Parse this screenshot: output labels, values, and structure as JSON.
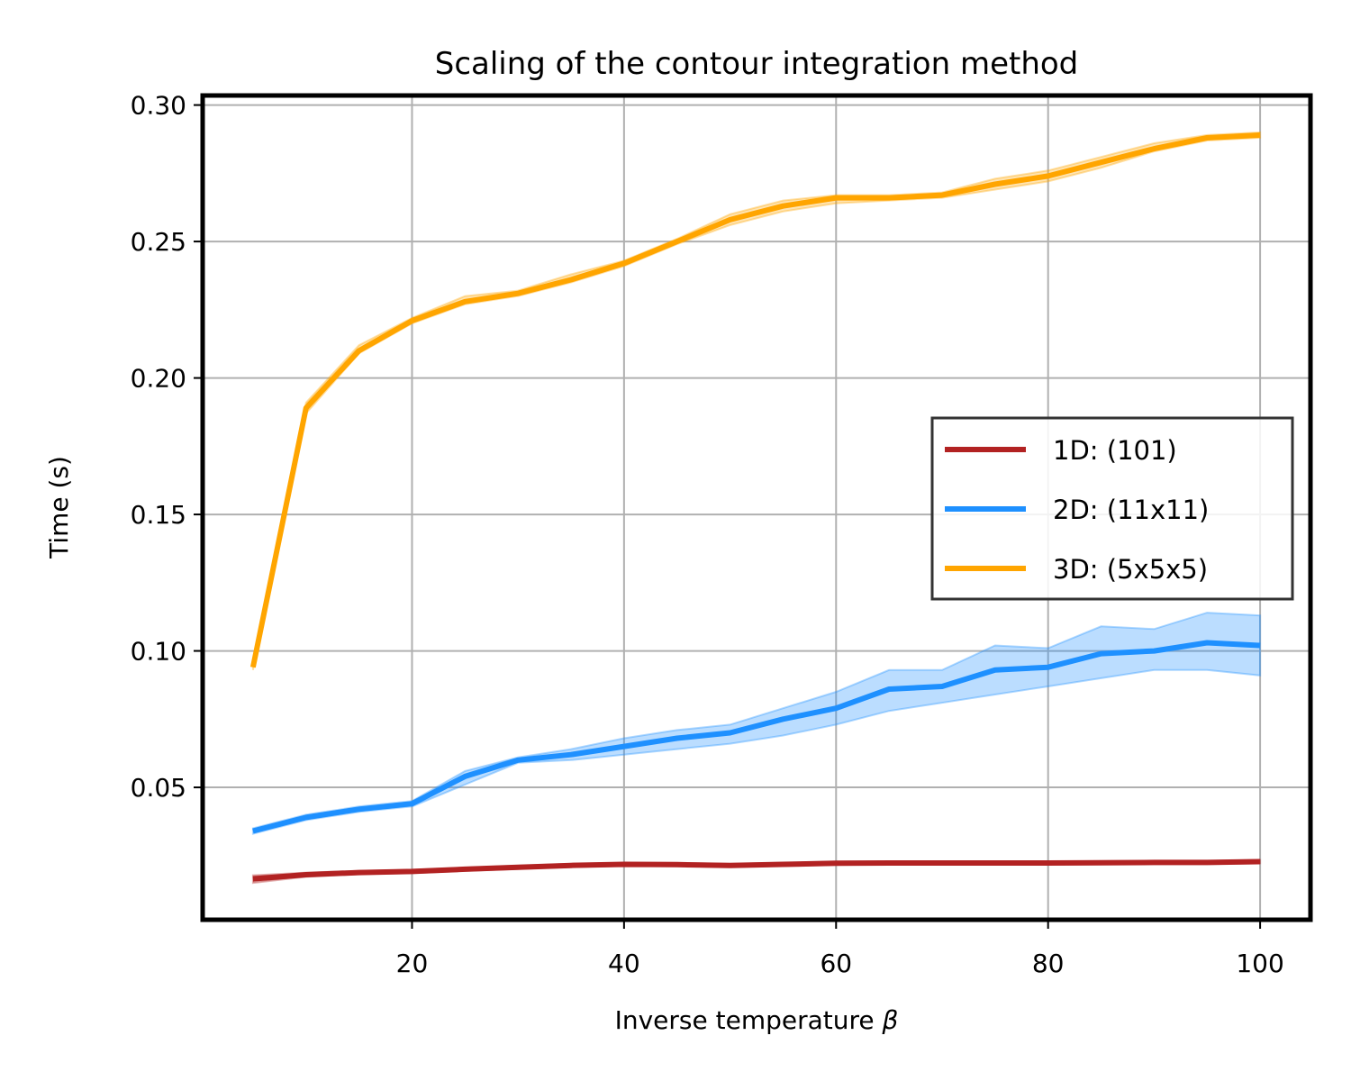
{
  "chart_data": {
    "type": "line",
    "title": "Scaling of the contour integration method",
    "xlabel": "Inverse temperature",
    "xlabel_symbol": "β",
    "ylabel": "Time (s)",
    "xlim": [
      0.25,
      104.75
    ],
    "ylim": [
      0.0015,
      0.3035
    ],
    "xticks": [
      20,
      40,
      60,
      80,
      100
    ],
    "xtick_labels": [
      "20",
      "40",
      "60",
      "80",
      "100"
    ],
    "yticks": [
      0.05,
      0.1,
      0.15,
      0.2,
      0.25,
      0.3
    ],
    "ytick_labels": [
      "0.05",
      "0.10",
      "0.15",
      "0.20",
      "0.25",
      "0.30"
    ],
    "grid": true,
    "legend_position": "center-right",
    "x": [
      5,
      10,
      15,
      20,
      25,
      30,
      35,
      40,
      45,
      50,
      55,
      60,
      65,
      70,
      75,
      80,
      85,
      90,
      95,
      100
    ],
    "series": [
      {
        "name": "1D: (101)",
        "color": "#b22222",
        "values": [
          0.0165,
          0.018,
          0.0188,
          0.0192,
          0.02,
          0.0207,
          0.0214,
          0.0218,
          0.0217,
          0.0214,
          0.0218,
          0.0222,
          0.0223,
          0.0223,
          0.0223,
          0.0223,
          0.0224,
          0.0225,
          0.0225,
          0.0228
        ],
        "lower": [
          0.015,
          0.0172,
          0.0182,
          0.0186,
          0.0194,
          0.0201,
          0.0208,
          0.0212,
          0.0211,
          0.0208,
          0.0212,
          0.0216,
          0.0217,
          0.0217,
          0.0217,
          0.0217,
          0.0218,
          0.0219,
          0.0219,
          0.0222
        ],
        "upper": [
          0.0178,
          0.0188,
          0.0194,
          0.0198,
          0.0206,
          0.0213,
          0.022,
          0.0224,
          0.0223,
          0.022,
          0.0224,
          0.0228,
          0.0229,
          0.0229,
          0.0229,
          0.0229,
          0.023,
          0.0231,
          0.0231,
          0.0234
        ]
      },
      {
        "name": "2D: (11x11)",
        "color": "#1e90ff",
        "values": [
          0.034,
          0.039,
          0.042,
          0.044,
          0.054,
          0.06,
          0.062,
          0.065,
          0.068,
          0.07,
          0.075,
          0.079,
          0.086,
          0.087,
          0.093,
          0.094,
          0.099,
          0.1,
          0.103,
          0.102
        ],
        "lower": [
          0.033,
          0.038,
          0.041,
          0.043,
          0.051,
          0.059,
          0.06,
          0.062,
          0.064,
          0.066,
          0.069,
          0.073,
          0.078,
          0.081,
          0.084,
          0.087,
          0.09,
          0.093,
          0.093,
          0.091
        ],
        "upper": [
          0.035,
          0.04,
          0.043,
          0.045,
          0.056,
          0.061,
          0.064,
          0.068,
          0.071,
          0.073,
          0.079,
          0.085,
          0.093,
          0.093,
          0.102,
          0.101,
          0.109,
          0.108,
          0.114,
          0.113
        ]
      },
      {
        "name": "3D: (5x5x5)",
        "color": "#ffa500",
        "values": [
          0.094,
          0.189,
          0.21,
          0.221,
          0.228,
          0.231,
          0.236,
          0.242,
          0.25,
          0.258,
          0.263,
          0.266,
          0.266,
          0.267,
          0.271,
          0.274,
          0.279,
          0.284,
          0.288,
          0.289
        ],
        "lower": [
          0.093,
          0.187,
          0.209,
          0.22,
          0.227,
          0.23,
          0.235,
          0.241,
          0.249,
          0.256,
          0.261,
          0.264,
          0.265,
          0.266,
          0.269,
          0.272,
          0.277,
          0.283,
          0.287,
          0.288
        ],
        "upper": [
          0.096,
          0.191,
          0.212,
          0.222,
          0.23,
          0.232,
          0.238,
          0.243,
          0.251,
          0.26,
          0.265,
          0.267,
          0.267,
          0.268,
          0.273,
          0.276,
          0.281,
          0.286,
          0.289,
          0.29
        ]
      }
    ]
  }
}
